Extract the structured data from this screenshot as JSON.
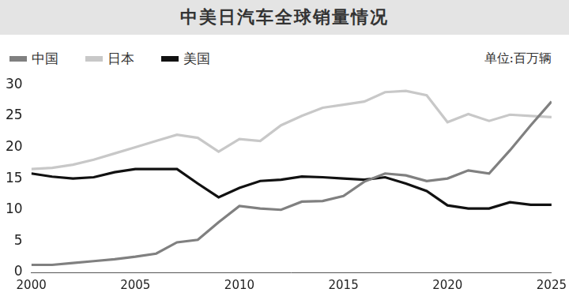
{
  "chart_data": {
    "type": "line",
    "title": "中美日汽车全球销量情况",
    "annotation": "单位:百万辆",
    "x": [
      2000,
      2001,
      2002,
      2003,
      2004,
      2005,
      2006,
      2007,
      2008,
      2009,
      2010,
      2011,
      2012,
      2013,
      2014,
      2015,
      2016,
      2017,
      2018,
      2019,
      2020,
      2021,
      2022,
      2023,
      2024,
      2025
    ],
    "series": [
      {
        "name": "中国",
        "color": "#808080",
        "values": [
          1.2,
          1.2,
          1.5,
          1.8,
          2.1,
          2.5,
          3.0,
          4.8,
          5.2,
          8.0,
          10.6,
          10.2,
          10.0,
          11.3,
          11.4,
          12.2,
          14.5,
          15.8,
          15.5,
          14.6,
          15.0,
          16.3,
          15.8,
          19.5,
          23.5,
          27.3
        ]
      },
      {
        "name": "日本",
        "color": "#c8c8c8",
        "values": [
          16.5,
          16.7,
          17.2,
          18.0,
          19.0,
          20.0,
          21.0,
          22.0,
          21.5,
          19.3,
          21.3,
          21.0,
          23.5,
          25.0,
          26.3,
          26.8,
          27.3,
          28.8,
          29.0,
          28.3,
          24.0,
          25.3,
          24.2,
          25.2,
          25.0,
          24.8
        ]
      },
      {
        "name": "美国",
        "color": "#111111",
        "values": [
          15.8,
          15.3,
          15.0,
          15.2,
          16.0,
          16.5,
          16.5,
          16.5,
          14.2,
          12.0,
          13.5,
          14.6,
          14.8,
          15.3,
          15.2,
          15.0,
          14.8,
          15.2,
          14.2,
          13.0,
          10.7,
          10.2,
          10.2,
          11.2,
          10.8,
          10.8
        ]
      }
    ],
    "xlim": [
      2000,
      2025
    ],
    "xticks": [
      2000,
      2005,
      2010,
      2015,
      2020,
      2025
    ],
    "ylim": [
      0,
      30
    ],
    "yticks": [
      0,
      5,
      10,
      15,
      20,
      25,
      30
    ],
    "grid": false,
    "legend": "top-left"
  }
}
